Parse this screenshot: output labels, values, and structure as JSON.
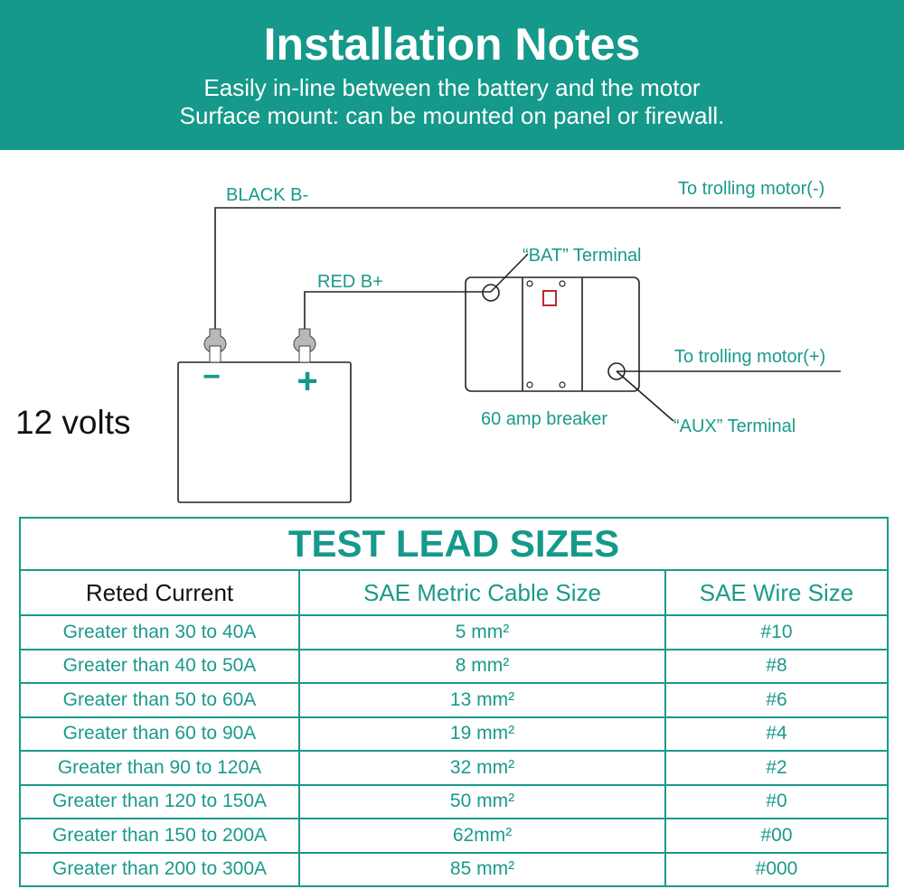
{
  "header": {
    "title": "Installation Notes",
    "lines": [
      "Easily in-line between the battery and the motor",
      "Surface mount: can be mounted on panel or firewall."
    ]
  },
  "diagram": {
    "battery_voltage": "12 volts",
    "black_label": "BLACK B-",
    "red_label": "RED B+",
    "motor_neg": "To trolling motor(-)",
    "motor_pos": "To trolling motor(+)",
    "bat_terminal": "“BAT” Terminal",
    "aux_terminal": "“AUX” Terminal",
    "breaker": "60 amp breaker",
    "minus": "−",
    "plus": "+",
    "colors": {
      "accent": "#15998a",
      "indicator": "#c0282d",
      "lug": "#b8b8b8"
    }
  },
  "table": {
    "title": "TEST LEAD SIZES",
    "headers": [
      "Reted Current",
      "SAE Metric Cable Size",
      "SAE Wire Size"
    ],
    "rows": [
      [
        "Greater than 30 to 40A",
        "5 mm²",
        "#10"
      ],
      [
        "Greater than 40 to 50A",
        "8 mm²",
        "#8"
      ],
      [
        "Greater than 50 to 60A",
        "13 mm²",
        "#6"
      ],
      [
        "Greater than 60 to 90A",
        "19 mm²",
        "#4"
      ],
      [
        "Greater than 90 to 120A",
        "32 mm²",
        "#2"
      ],
      [
        "Greater than 120 to 150A",
        "50 mm²",
        "#0"
      ],
      [
        "Greater than 150 to 200A",
        "62mm²",
        "#00"
      ],
      [
        "Greater than 200 to 300A",
        "85 mm²",
        "#000"
      ]
    ]
  }
}
